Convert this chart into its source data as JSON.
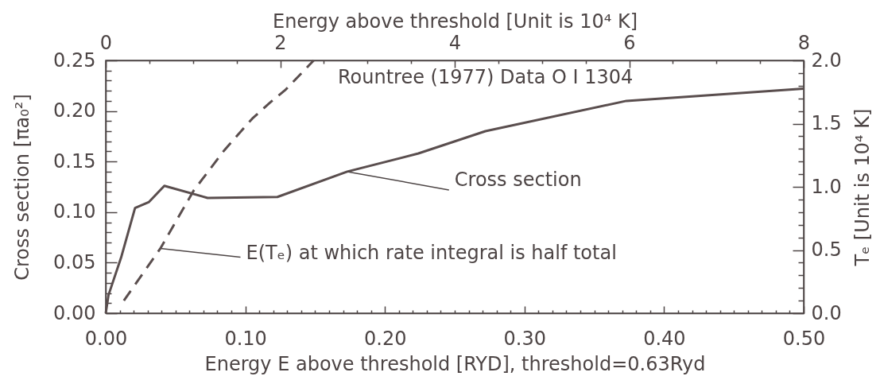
{
  "chart_data": {
    "type": "line",
    "title": "Rountree (1977) Data O I 1304",
    "xlabel": "Energy E above threshold [RYD], threshold=0.63Ryd",
    "ylabel": "Cross section [πa₀²]",
    "y2label": "Tₑ [Unit is 10⁴ K]",
    "x2label": "Energy above threshold [Unit is 10⁴ K]",
    "xlim": [
      0,
      0.5
    ],
    "xticks": [
      {
        "value": 0,
        "label": "0.00"
      },
      {
        "value": 0.01,
        "label": null
      },
      {
        "value": 0.02,
        "label": null
      },
      {
        "value": 0.03,
        "label": null
      },
      {
        "value": 0.04,
        "label": null
      },
      {
        "value": 0.05,
        "label": null
      },
      {
        "value": 0.06,
        "label": null
      },
      {
        "value": 0.07,
        "label": null
      },
      {
        "value": 0.08,
        "label": null
      },
      {
        "value": 0.09,
        "label": null
      },
      {
        "value": 0.1,
        "label": "0.10"
      },
      {
        "value": 0.11,
        "label": null
      },
      {
        "value": 0.12,
        "label": null
      },
      {
        "value": 0.13,
        "label": null
      },
      {
        "value": 0.14,
        "label": null
      },
      {
        "value": 0.15,
        "label": null
      },
      {
        "value": 0.16,
        "label": null
      },
      {
        "value": 0.17,
        "label": null
      },
      {
        "value": 0.18,
        "label": null
      },
      {
        "value": 0.19,
        "label": null
      },
      {
        "value": 0.2,
        "label": "0.20"
      },
      {
        "value": 0.21,
        "label": null
      },
      {
        "value": 0.22,
        "label": null
      },
      {
        "value": 0.23,
        "label": null
      },
      {
        "value": 0.24,
        "label": null
      },
      {
        "value": 0.25,
        "label": null
      },
      {
        "value": 0.26,
        "label": null
      },
      {
        "value": 0.27,
        "label": null
      },
      {
        "value": 0.28,
        "label": null
      },
      {
        "value": 0.29,
        "label": null
      },
      {
        "value": 0.3,
        "label": "0.30"
      },
      {
        "value": 0.31,
        "label": null
      },
      {
        "value": 0.32,
        "label": null
      },
      {
        "value": 0.33,
        "label": null
      },
      {
        "value": 0.34,
        "label": null
      },
      {
        "value": 0.35,
        "label": null
      },
      {
        "value": 0.36,
        "label": null
      },
      {
        "value": 0.37,
        "label": null
      },
      {
        "value": 0.38,
        "label": null
      },
      {
        "value": 0.39,
        "label": null
      },
      {
        "value": 0.4,
        "label": "0.40"
      },
      {
        "value": 0.41,
        "label": null
      },
      {
        "value": 0.42,
        "label": null
      },
      {
        "value": 0.43,
        "label": null
      },
      {
        "value": 0.44,
        "label": null
      },
      {
        "value": 0.45,
        "label": null
      },
      {
        "value": 0.46,
        "label": null
      },
      {
        "value": 0.47,
        "label": null
      },
      {
        "value": 0.48,
        "label": null
      },
      {
        "value": 0.49,
        "label": null
      },
      {
        "value": 0.5,
        "label": "0.50"
      }
    ],
    "ylim": [
      0,
      0.25
    ],
    "yticks": [
      {
        "value": 0,
        "label": "0.00"
      },
      {
        "value": 0.01,
        "label": null
      },
      {
        "value": 0.02,
        "label": null
      },
      {
        "value": 0.03,
        "label": null
      },
      {
        "value": 0.04,
        "label": null
      },
      0.05,
      {
        "value": 0.06,
        "label": null
      },
      {
        "value": 0.07,
        "label": null
      },
      {
        "value": 0.08,
        "label": null
      },
      {
        "value": 0.09,
        "label": null
      },
      {
        "value": 0.1,
        "label": "0.10"
      },
      {
        "value": 0.11,
        "label": null
      },
      {
        "value": 0.12,
        "label": null
      },
      {
        "value": 0.13,
        "label": null
      },
      {
        "value": 0.14,
        "label": null
      },
      0.15,
      {
        "value": 0.16,
        "label": null
      },
      {
        "value": 0.17,
        "label": null
      },
      {
        "value": 0.18,
        "label": null
      },
      {
        "value": 0.19,
        "label": null
      },
      {
        "value": 0.2,
        "label": "0.20"
      },
      {
        "value": 0.21,
        "label": null
      },
      {
        "value": 0.22,
        "label": null
      },
      {
        "value": 0.23,
        "label": null
      },
      {
        "value": 0.24,
        "label": null
      },
      0.25
    ],
    "y2lim": [
      0,
      2
    ],
    "y2ticks": [
      {
        "value": 0,
        "label": "0.0"
      },
      {
        "value": 0.1,
        "label": null
      },
      {
        "value": 0.2,
        "label": null
      },
      {
        "value": 0.3,
        "label": null
      },
      {
        "value": 0.4,
        "label": null
      },
      0.5,
      {
        "value": 0.6,
        "label": null
      },
      {
        "value": 0.7,
        "label": null
      },
      {
        "value": 0.8,
        "label": null
      },
      {
        "value": 0.9,
        "label": null
      },
      {
        "value": 1,
        "label": "1.0"
      },
      {
        "value": 1.1,
        "label": null
      },
      {
        "value": 1.2,
        "label": null
      },
      {
        "value": 1.3,
        "label": null
      },
      {
        "value": 1.4,
        "label": null
      },
      1.5,
      {
        "value": 1.6,
        "label": null
      },
      {
        "value": 1.7,
        "label": null
      },
      {
        "value": 1.8,
        "label": null
      },
      {
        "value": 1.9,
        "label": null
      },
      {
        "value": 2,
        "label": "2.0"
      }
    ],
    "x2lim": [
      0,
      8
    ],
    "x2ticks": [
      0,
      {
        "value": 0.5,
        "label": null
      },
      {
        "value": 1,
        "label": null
      },
      {
        "value": 1.5,
        "label": null
      },
      2,
      {
        "value": 2.5,
        "label": null
      },
      {
        "value": 3,
        "label": null
      },
      {
        "value": 3.5,
        "label": null
      },
      4,
      {
        "value": 4.5,
        "label": null
      },
      {
        "value": 5,
        "label": null
      },
      {
        "value": 5.5,
        "label": null
      },
      6,
      {
        "value": 6.5,
        "label": null
      },
      {
        "value": 7,
        "label": null
      },
      {
        "value": 7.5,
        "label": null
      },
      8
    ],
    "series": [
      {
        "color": "#5a4e4e",
        "line_style": "solid",
        "x": [
          0,
          0.002,
          0.011,
          0.021,
          0.031,
          0.042,
          0.073,
          0.123,
          0.173,
          0.224,
          0.272,
          0.373,
          0.5
        ],
        "values": [
          0,
          0.018,
          0.055,
          0.104,
          0.11,
          0.126,
          0.114,
          0.115,
          0.14,
          0.158,
          0.18,
          0.21,
          0.222
        ]
      },
      {
        "color": "#5a4e4e",
        "line_style": "dashed",
        "axis": "y2",
        "x": [
          0.013,
          0.039,
          0.063,
          0.085,
          0.105,
          0.117,
          0.129,
          0.149
        ],
        "values": [
          0.1,
          0.51,
          0.97,
          1.29,
          1.54,
          1.66,
          1.77,
          2.0
        ]
      }
    ],
    "annotations": [
      {
        "text": "Cross section",
        "x": 0.173,
        "y": 0.14
      },
      {
        "text": "E(Tₑ) at which rate integral is half total",
        "x": 0.039,
        "y": 0.064
      }
    ]
  }
}
